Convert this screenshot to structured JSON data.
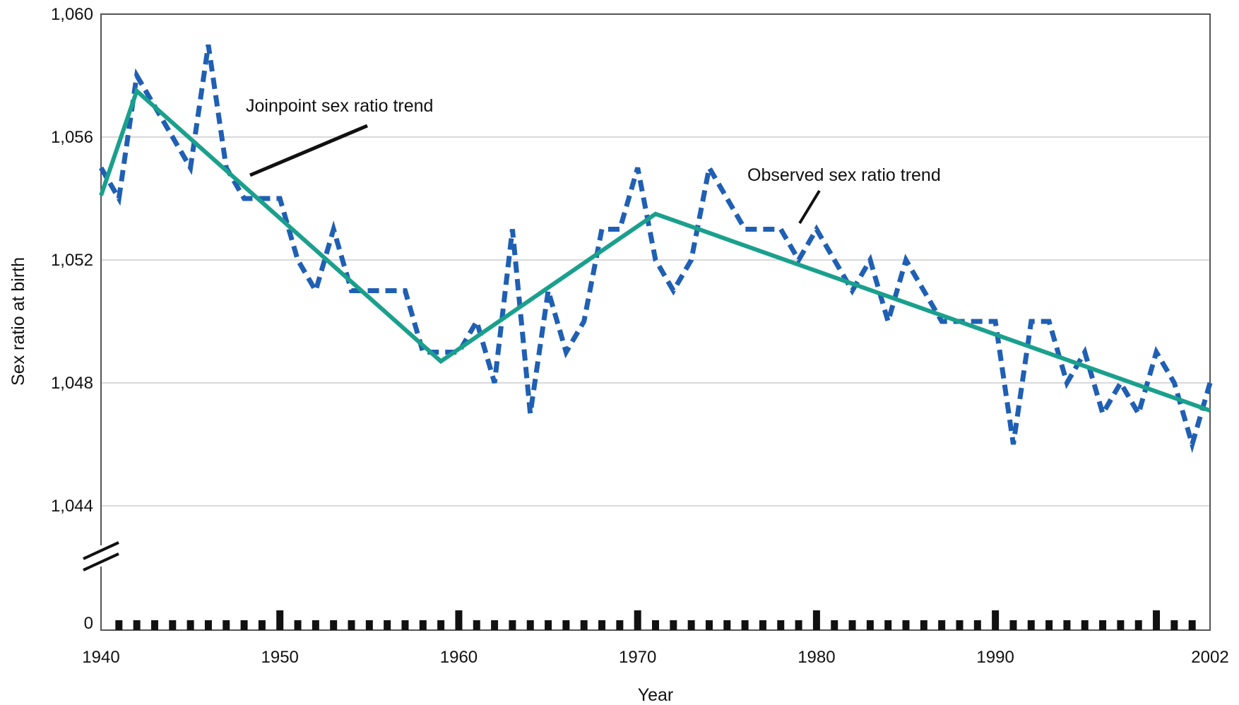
{
  "chart_data": {
    "type": "line",
    "title": "",
    "xlabel": "Year",
    "ylabel": "Sex ratio at birth",
    "xlim": [
      1940,
      2002
    ],
    "ylim": [
      1044,
      1060
    ],
    "y_zero_label": "0",
    "axis_break": true,
    "grid": true,
    "x_tick_labels": [
      "1940",
      "1950",
      "1960",
      "1970",
      "1980",
      "1990",
      "2002"
    ],
    "x_ticks": [
      1940,
      1950,
      1960,
      1970,
      1980,
      1990,
      2002
    ],
    "y_tick_labels": [
      "1,044",
      "1,048",
      "1,052",
      "1,056",
      "1,060"
    ],
    "y_ticks": [
      1044,
      1048,
      1052,
      1056,
      1060
    ],
    "series": [
      {
        "name": "Observed sex ratio trend",
        "style": "dashed",
        "color": "#1f5fb4",
        "x": [
          1940,
          1941,
          1942,
          1943,
          1944,
          1945,
          1946,
          1947,
          1948,
          1949,
          1950,
          1951,
          1952,
          1953,
          1954,
          1955,
          1956,
          1957,
          1958,
          1959,
          1960,
          1961,
          1962,
          1963,
          1964,
          1965,
          1966,
          1967,
          1968,
          1969,
          1970,
          1971,
          1972,
          1973,
          1974,
          1975,
          1976,
          1977,
          1978,
          1979,
          1980,
          1981,
          1982,
          1983,
          1984,
          1985,
          1986,
          1987,
          1988,
          1989,
          1990,
          1991,
          1992,
          1993,
          1994,
          1995,
          1996,
          1997,
          1998,
          1999,
          2000,
          2001,
          2002
        ],
        "values": [
          1055,
          1054,
          1058,
          1057,
          1056,
          1055,
          1059,
          1055,
          1054,
          1054,
          1054,
          1052,
          1051,
          1053,
          1051,
          1051,
          1051,
          1051,
          1049,
          1049,
          1049,
          1050,
          1048,
          1053,
          1047,
          1051,
          1049,
          1050,
          1053,
          1053,
          1055,
          1052,
          1051,
          1052,
          1055,
          1054,
          1053,
          1053,
          1053,
          1052,
          1053,
          1052,
          1051,
          1052,
          1050,
          1052,
          1051,
          1050,
          1050,
          1050,
          1050,
          1046,
          1050,
          1050,
          1048,
          1049,
          1047,
          1048,
          1047,
          1049,
          1048,
          1046,
          1048
        ]
      },
      {
        "name": "Joinpoint sex ratio trend",
        "style": "solid",
        "color": "#1aa08c",
        "x": [
          1940,
          1942,
          1959,
          1971,
          2002
        ],
        "values": [
          1054.1,
          1057.5,
          1048.7,
          1053.5,
          1047.1
        ]
      }
    ],
    "annotations": [
      {
        "text": "Joinpoint sex ratio trend",
        "target": "Joinpoint sex ratio trend"
      },
      {
        "text": "Observed sex ratio trend",
        "target": "Observed sex ratio trend"
      }
    ],
    "baseline_bars": {
      "description_free": true,
      "major_years": [
        1950,
        1960,
        1970,
        1980,
        1990,
        1999
      ]
    }
  }
}
